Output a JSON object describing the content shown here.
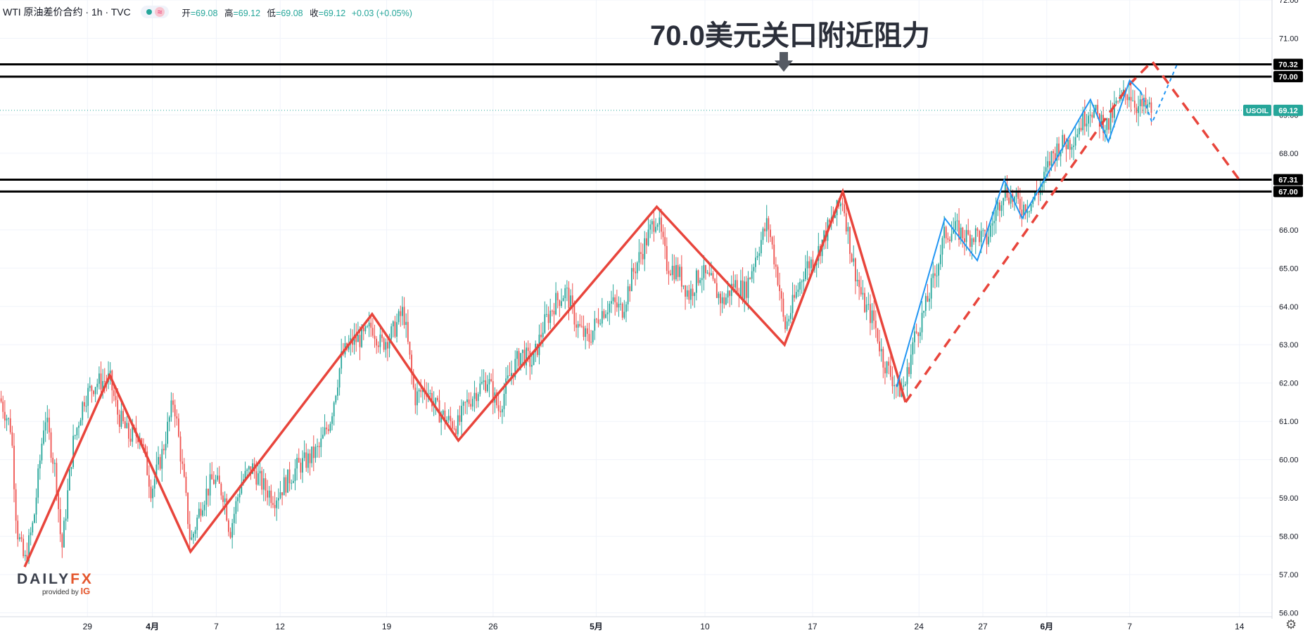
{
  "header": {
    "symbol": "WTI 原油差价合约 · 1h · TVC",
    "wave_icon": "≈",
    "ohlc": {
      "open_label": "开",
      "open": "=69.08",
      "high_label": "高",
      "high": "=69.12",
      "low_label": "低",
      "low": "=69.08",
      "close_label": "收",
      "close": "=69.12",
      "change": "+0.03 (+0.05%)"
    }
  },
  "annotation": {
    "text": "70.0美元关口附近阻力",
    "arrow_icon": "arrow-down-icon"
  },
  "logo": {
    "brand_a": "DAILY",
    "brand_b": "FX",
    "provided_by": "provided by",
    "ig": "IG"
  },
  "colors": {
    "up": "#26a69a",
    "down": "#ef5350",
    "zigzag": "#e8453c",
    "blue_path": "#2196f3",
    "level_line": "#000000",
    "price_badge": "#26a69a"
  },
  "chart_data": {
    "type": "candlestick",
    "symbol": "USOIL",
    "interval": "1h",
    "y_axis": {
      "ylim": [
        55.9,
        72.0
      ],
      "tick_labels": [
        "72.00",
        "71.00",
        "70.00",
        "69.00",
        "68.00",
        "67.00",
        "66.00",
        "65.00",
        "64.00",
        "63.00",
        "62.00",
        "61.00",
        "60.00",
        "59.00",
        "58.00",
        "57.00",
        "56.00"
      ],
      "ticks": [
        72,
        71,
        70,
        69,
        68,
        67,
        66,
        65,
        64,
        63,
        62,
        61,
        60,
        59,
        58,
        57,
        56
      ]
    },
    "x_axis": {
      "xlim": [
        0,
        113.5
      ],
      "tick_labels": [
        "29",
        "4月",
        "7",
        "12",
        "19",
        "26",
        "5月",
        "10",
        "17",
        "24",
        "27",
        "6月",
        "7",
        "14"
      ],
      "tick_positions": [
        7.8,
        13.6,
        19.3,
        25.0,
        34.5,
        44.0,
        53.2,
        62.9,
        72.5,
        82.0,
        87.7,
        93.4,
        100.8,
        110.6
      ],
      "bold_labels": [
        "4月",
        "5月",
        "6月"
      ]
    },
    "horizontal_levels": [
      {
        "value": 70.32,
        "label": "70.32"
      },
      {
        "value": 70.0,
        "label": "70.00"
      },
      {
        "value": 67.31,
        "label": "67.31"
      },
      {
        "value": 67.0,
        "label": "67.00"
      }
    ],
    "current_price": {
      "label": "USOIL",
      "value": 69.12,
      "text": "69.12"
    },
    "zigzag_solid": [
      [
        2.2,
        57.2
      ],
      [
        9.8,
        62.2
      ],
      [
        17.0,
        57.6
      ],
      [
        33.2,
        63.8
      ],
      [
        40.9,
        60.5
      ],
      [
        58.6,
        66.6
      ],
      [
        70.0,
        63.0
      ],
      [
        75.2,
        67.0
      ],
      [
        80.8,
        61.5
      ]
    ],
    "zigzag_dashed": [
      [
        80.8,
        61.5
      ],
      [
        100.8,
        69.8
      ],
      [
        102.8,
        70.4
      ],
      [
        110.6,
        67.3
      ]
    ],
    "blue_path_solid": [
      [
        80.0,
        61.9
      ],
      [
        84.3,
        66.3
      ],
      [
        87.2,
        65.2
      ],
      [
        89.6,
        67.3
      ],
      [
        91.2,
        66.3
      ],
      [
        97.3,
        69.4
      ],
      [
        98.9,
        68.3
      ],
      [
        100.8,
        69.9
      ],
      [
        101.8,
        69.6
      ]
    ],
    "blue_path_dashed": [
      [
        101.8,
        69.6
      ],
      [
        102.8,
        68.8
      ],
      [
        105.0,
        70.3
      ]
    ],
    "price_trace": [
      [
        0,
        61.6
      ],
      [
        1,
        60.8
      ],
      [
        1.5,
        58.2
      ],
      [
        2.2,
        57.3
      ],
      [
        3,
        58.4
      ],
      [
        4,
        61.2
      ],
      [
        5,
        59.6
      ],
      [
        5.5,
        57.6
      ],
      [
        6.5,
        60.4
      ],
      [
        7.5,
        61.6
      ],
      [
        8.5,
        62.0
      ],
      [
        9.8,
        62.1
      ],
      [
        10.5,
        61.2
      ],
      [
        11.5,
        60.6
      ],
      [
        12.5,
        60.7
      ],
      [
        13.5,
        59.2
      ],
      [
        14.5,
        60.2
      ],
      [
        15.5,
        61.6
      ],
      [
        16.5,
        59.2
      ],
      [
        17.0,
        57.8
      ],
      [
        18,
        58.9
      ],
      [
        19,
        59.5
      ],
      [
        20,
        59.1
      ],
      [
        20.5,
        58.1
      ],
      [
        21.5,
        59.4
      ],
      [
        22.5,
        59.8
      ],
      [
        23.5,
        59.3
      ],
      [
        24.5,
        59.0
      ],
      [
        25.5,
        59.4
      ],
      [
        26.5,
        59.8
      ],
      [
        27.5,
        60.0
      ],
      [
        28.5,
        60.3
      ],
      [
        29.5,
        61.1
      ],
      [
        30.5,
        62.7
      ],
      [
        31.5,
        63.1
      ],
      [
        32.5,
        63.2
      ],
      [
        33.2,
        63.5
      ],
      [
        34,
        63.0
      ],
      [
        35,
        63.3
      ],
      [
        36,
        63.9
      ],
      [
        37,
        61.6
      ],
      [
        38,
        61.9
      ],
      [
        39,
        61.3
      ],
      [
        40,
        61.0
      ],
      [
        40.9,
        60.9
      ],
      [
        41.5,
        61.4
      ],
      [
        42.5,
        61.8
      ],
      [
        43.5,
        62.1
      ],
      [
        44.5,
        61.3
      ],
      [
        45.5,
        62.2
      ],
      [
        46.5,
        62.8
      ],
      [
        47.5,
        62.5
      ],
      [
        48.5,
        63.5
      ],
      [
        49.5,
        64.1
      ],
      [
        50.5,
        64.4
      ],
      [
        51.5,
        63.5
      ],
      [
        52.5,
        63.1
      ],
      [
        53.5,
        63.8
      ],
      [
        54.5,
        64.1
      ],
      [
        55.5,
        63.9
      ],
      [
        56.5,
        64.9
      ],
      [
        57.5,
        65.6
      ],
      [
        58.6,
        66.4
      ],
      [
        59.5,
        65.1
      ],
      [
        60.5,
        64.9
      ],
      [
        61.5,
        64.3
      ],
      [
        62.5,
        64.9
      ],
      [
        63.5,
        64.6
      ],
      [
        64.5,
        64.1
      ],
      [
        65.5,
        64.6
      ],
      [
        66.5,
        64.4
      ],
      [
        67.5,
        65.4
      ],
      [
        68.5,
        66.2
      ],
      [
        69.5,
        64.6
      ],
      [
        70.0,
        63.4
      ],
      [
        70.8,
        64.1
      ],
      [
        71.8,
        65.0
      ],
      [
        72.8,
        65.3
      ],
      [
        73.8,
        66.0
      ],
      [
        74.5,
        66.4
      ],
      [
        75.2,
        66.8
      ],
      [
        76,
        65.3
      ],
      [
        77,
        64.1
      ],
      [
        78,
        63.6
      ],
      [
        78.8,
        62.6
      ],
      [
        79.5,
        62.2
      ],
      [
        80.2,
        61.8
      ],
      [
        80.8,
        62.0
      ],
      [
        81.5,
        63.1
      ],
      [
        82.5,
        63.9
      ],
      [
        83.5,
        64.9
      ],
      [
        84.3,
        65.9
      ],
      [
        85.3,
        66.0
      ],
      [
        86.3,
        65.8
      ],
      [
        87.2,
        65.9
      ],
      [
        88,
        65.7
      ],
      [
        88.8,
        66.4
      ],
      [
        89.6,
        67.1
      ],
      [
        90.4,
        66.8
      ],
      [
        91.2,
        66.6
      ],
      [
        92,
        66.7
      ],
      [
        93,
        67.2
      ],
      [
        93.8,
        67.9
      ],
      [
        94.5,
        68.2
      ],
      [
        95.5,
        68.3
      ],
      [
        96.5,
        68.8
      ],
      [
        97.3,
        69.2
      ],
      [
        98,
        68.9
      ],
      [
        98.9,
        68.7
      ],
      [
        99.5,
        69.2
      ],
      [
        100.3,
        69.5
      ],
      [
        100.8,
        69.6
      ],
      [
        101.5,
        69.2
      ],
      [
        102.3,
        69.2
      ],
      [
        102.8,
        69.1
      ]
    ]
  }
}
